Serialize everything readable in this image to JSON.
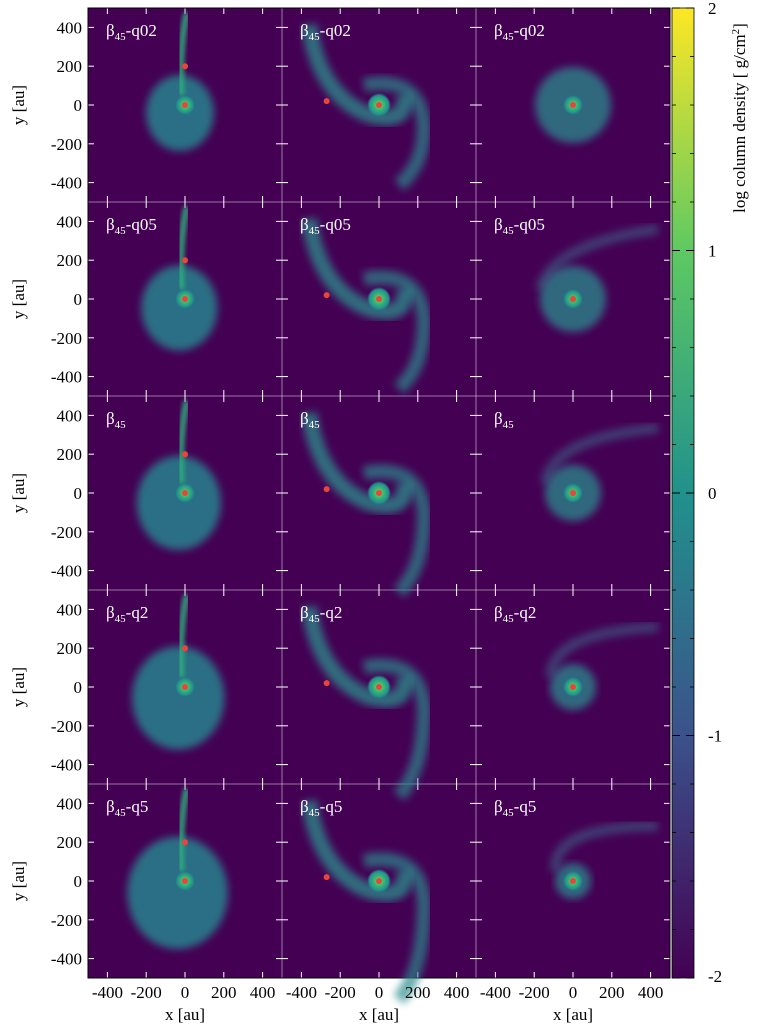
{
  "chart_data": {
    "type": "heatmap",
    "layout": {
      "rows": 5,
      "cols": 3
    },
    "xlabel": "x [au]",
    "ylabel": "y [au]",
    "xlim": [
      -500,
      500
    ],
    "ylim": [
      -500,
      500
    ],
    "xticks": [
      -400,
      -200,
      0,
      200,
      400
    ],
    "yticks": [
      400,
      200,
      0,
      -200,
      -400
    ],
    "colorbar": {
      "label": "log column density [ g/cm",
      "label_sup": "2",
      "label_end": "]",
      "range": [
        -2,
        2
      ],
      "ticks": [
        2,
        1,
        0,
        -1,
        -2
      ],
      "colormap": "viridis",
      "colors": [
        "#440154",
        "#3b528b",
        "#21918c",
        "#5ec962",
        "#fde725"
      ]
    },
    "rows": [
      {
        "label_main": "β",
        "label_sub": "45",
        "label_suffix": "-q02"
      },
      {
        "label_main": "β",
        "label_sub": "45",
        "label_suffix": "-q05"
      },
      {
        "label_main": "β",
        "label_sub": "45",
        "label_suffix": ""
      },
      {
        "label_main": "β",
        "label_sub": "45",
        "label_suffix": "-q2"
      },
      {
        "label_main": "β",
        "label_sub": "45",
        "label_suffix": "-q5"
      }
    ],
    "markers": {
      "color": "#e8453c",
      "col0": [
        [
          0,
          200
        ],
        [
          0,
          0
        ]
      ],
      "col1": [
        [
          -270,
          20
        ],
        [
          0,
          0
        ]
      ],
      "col2": [
        [
          0,
          0
        ]
      ]
    }
  }
}
